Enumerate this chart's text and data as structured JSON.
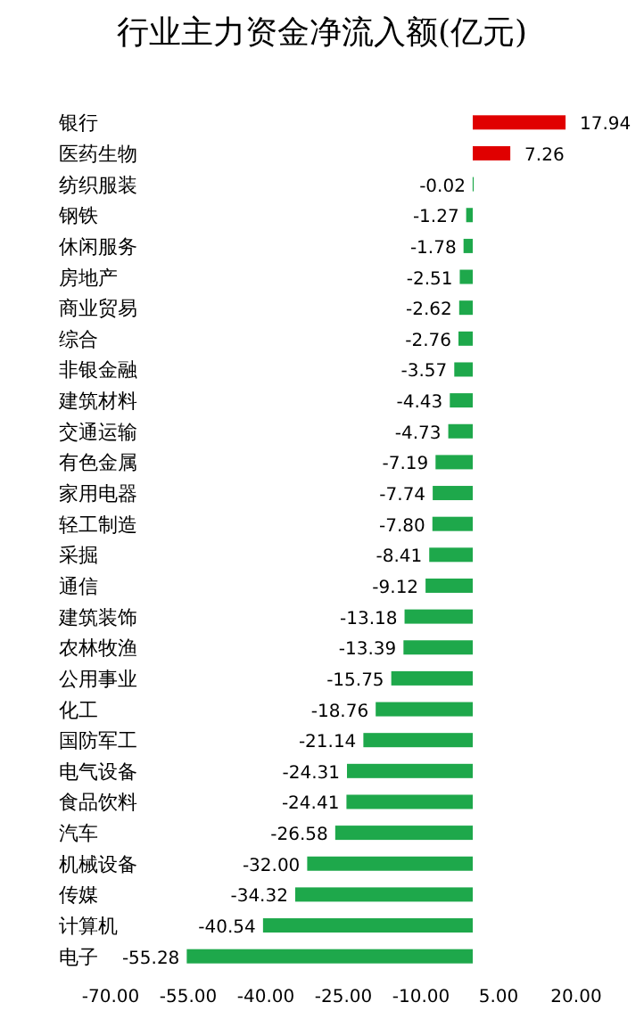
{
  "chart_data": {
    "type": "bar",
    "orientation": "horizontal",
    "title": "行业主力资金净流入额(亿元)",
    "categories": [
      "银行",
      "医药生物",
      "纺织服装",
      "钢铁",
      "休闲服务",
      "房地产",
      "商业贸易",
      "综合",
      "非银金融",
      "建筑材料",
      "交通运输",
      "有色金属",
      "家用电器",
      "轻工制造",
      "采掘",
      "通信",
      "建筑装饰",
      "农林牧渔",
      "公用事业",
      "化工",
      "国防军工",
      "电气设备",
      "食品饮料",
      "汽车",
      "机械设备",
      "传媒",
      "计算机",
      "电子"
    ],
    "values": [
      17.94,
      7.26,
      -0.02,
      -1.27,
      -1.78,
      -2.51,
      -2.62,
      -2.76,
      -3.57,
      -4.43,
      -4.73,
      -7.19,
      -7.74,
      -7.8,
      -8.41,
      -9.12,
      -13.18,
      -13.39,
      -15.75,
      -18.76,
      -21.14,
      -24.31,
      -24.41,
      -26.58,
      -32.0,
      -34.32,
      -40.54,
      -55.28
    ],
    "value_labels": [
      "17.94",
      "7.26",
      "-0.02",
      "-1.27",
      "-1.78",
      "-2.51",
      "-2.62",
      "-2.76",
      "-3.57",
      "-4.43",
      "-4.73",
      "-7.19",
      "-7.74",
      "-7.80",
      "-8.41",
      "-9.12",
      "-13.18",
      "-13.39",
      "-15.75",
      "-18.76",
      "-21.14",
      "-24.31",
      "-24.41",
      "-26.58",
      "-32.00",
      "-34.32",
      "-40.54",
      "-55.28"
    ],
    "colors": [
      "#e00000",
      "#e00000",
      "#1ea84b",
      "#1ea84b",
      "#1ea84b",
      "#1ea84b",
      "#1ea84b",
      "#1ea84b",
      "#1ea84b",
      "#1ea84b",
      "#1ea84b",
      "#1ea84b",
      "#1ea84b",
      "#1ea84b",
      "#1ea84b",
      "#1ea84b",
      "#1ea84b",
      "#1ea84b",
      "#1ea84b",
      "#1ea84b",
      "#1ea84b",
      "#1ea84b",
      "#1ea84b",
      "#1ea84b",
      "#1ea84b",
      "#1ea84b",
      "#1ea84b",
      "#1ea84b"
    ],
    "xlim": [
      -70,
      20
    ],
    "xticks": [
      {
        "value": -70,
        "label": "-70.00"
      },
      {
        "value": -55,
        "label": "-55.00"
      },
      {
        "value": -40,
        "label": "-40.00"
      },
      {
        "value": -25,
        "label": "-25.00"
      },
      {
        "value": -10,
        "label": "-10.00"
      },
      {
        "value": 5,
        "label": "5.00"
      },
      {
        "value": 20,
        "label": "20.00"
      }
    ]
  }
}
